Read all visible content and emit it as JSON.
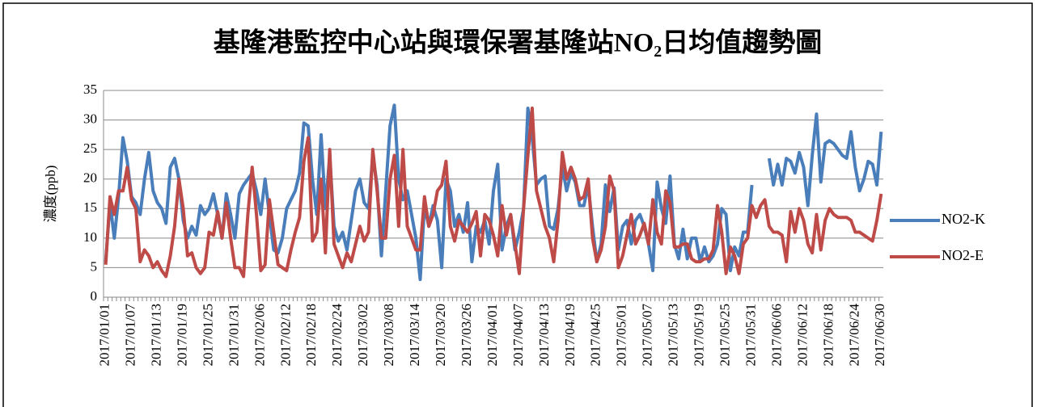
{
  "chart_data": {
    "type": "line",
    "title": "基隆港監控中心站與環保署基隆站NO₂日均值趨勢圖",
    "ylabel": "濃度(ppb)",
    "categories": [
      "2017/01/01",
      null,
      null,
      null,
      null,
      null,
      "2017/01/07",
      null,
      null,
      null,
      null,
      null,
      "2017/01/13",
      null,
      null,
      null,
      null,
      null,
      "2017/01/19",
      null,
      null,
      null,
      null,
      null,
      "2017/01/25",
      null,
      null,
      null,
      null,
      null,
      "2017/01/31",
      null,
      null,
      null,
      null,
      null,
      "2017/02/06",
      null,
      null,
      null,
      null,
      null,
      "2017/02/12",
      null,
      null,
      null,
      null,
      null,
      "2017/02/18",
      null,
      null,
      null,
      null,
      null,
      "2017/02/24",
      null,
      null,
      null,
      null,
      null,
      "2017/03/02",
      null,
      null,
      null,
      null,
      null,
      "2017/03/08",
      null,
      null,
      null,
      null,
      null,
      "2017/03/14",
      null,
      null,
      null,
      null,
      null,
      "2017/03/20",
      null,
      null,
      null,
      null,
      null,
      "2017/03/26",
      null,
      null,
      null,
      null,
      null,
      "2017/04/01",
      null,
      null,
      null,
      null,
      null,
      "2017/04/07",
      null,
      null,
      null,
      null,
      null,
      "2017/04/13",
      null,
      null,
      null,
      null,
      null,
      "2017/04/19",
      null,
      null,
      null,
      null,
      null,
      "2017/04/25",
      null,
      null,
      null,
      null,
      null,
      "2017/05/01",
      null,
      null,
      null,
      null,
      null,
      "2017/05/07",
      null,
      null,
      null,
      null,
      null,
      "2017/05/13",
      null,
      null,
      null,
      null,
      null,
      "2017/05/19",
      null,
      null,
      null,
      null,
      null,
      "2017/05/25",
      null,
      null,
      null,
      null,
      null,
      "2017/05/31",
      null,
      null,
      null,
      null,
      null,
      "2017/06/06",
      null,
      null,
      null,
      null,
      null,
      "2017/06/12",
      null,
      null,
      null,
      null,
      null,
      "2017/06/18",
      null,
      null,
      null,
      null,
      null,
      "2017/06/24",
      null,
      null,
      null,
      null,
      null,
      "2017/06/30"
    ],
    "series": [
      {
        "name": "NO2-K",
        "color": "#4a7ebb",
        "values": [
          6,
          16,
          10,
          17,
          27,
          23,
          17,
          16,
          14,
          20,
          24.5,
          18,
          16,
          15,
          12.5,
          22,
          23.5,
          20,
          13,
          10,
          12,
          10.5,
          15.5,
          14,
          15,
          17.5,
          14,
          10,
          17.5,
          14,
          10,
          17.5,
          19,
          20,
          21,
          18,
          14,
          20,
          14,
          8,
          7.5,
          10,
          15,
          16.5,
          18,
          21,
          29.5,
          29,
          20,
          14,
          27.5,
          15,
          24,
          12,
          9.5,
          11,
          8,
          13,
          18,
          20,
          16,
          15,
          24,
          19,
          7,
          18,
          29,
          32.5,
          20,
          16.5,
          18,
          14,
          10,
          3,
          15.5,
          12,
          15.5,
          13,
          5,
          20,
          18,
          12,
          14,
          11,
          16,
          6,
          12,
          11,
          13,
          9,
          18,
          22.5,
          8,
          12,
          14,
          8,
          11,
          15,
          32,
          27,
          19,
          20,
          20.5,
          12,
          11.5,
          15,
          22,
          18,
          21,
          19.5,
          15.5,
          15.5,
          19,
          12,
          6,
          9,
          19,
          14.5,
          18.5,
          8,
          12,
          13,
          9,
          13,
          14,
          12,
          9,
          4.5,
          19.5,
          15,
          12.5,
          20.5,
          9,
          6.5,
          11.5,
          6.5,
          10,
          10,
          6,
          8.5,
          6,
          7,
          9,
          15,
          14,
          4.5,
          8.5,
          7,
          11,
          11,
          19,
          null,
          null,
          null,
          23.5,
          19,
          22.5,
          19,
          23.5,
          23,
          21,
          24.5,
          22,
          15.5,
          24,
          31,
          19.5,
          26,
          26.5,
          26,
          25,
          24,
          23.5,
          28,
          22,
          18,
          20,
          23,
          22.5,
          19,
          28
        ]
      },
      {
        "name": "NO2-E",
        "color": "#be4b48",
        "values": [
          5.5,
          17,
          14,
          18,
          18,
          22,
          16.5,
          15,
          6,
          8,
          7,
          5,
          6,
          4.5,
          3.5,
          7,
          12,
          20,
          15,
          7,
          7.5,
          5,
          4,
          5,
          11,
          10.5,
          14.5,
          10,
          16,
          10,
          5,
          5,
          3.5,
          14,
          22,
          14,
          4.5,
          5.5,
          16.5,
          11,
          5.5,
          5,
          4.5,
          8,
          11,
          13.5,
          23,
          27,
          9.5,
          11,
          20,
          7.5,
          25,
          9,
          7,
          5,
          7.5,
          6,
          9,
          12,
          9.5,
          11,
          25,
          18,
          10,
          10,
          20,
          24,
          12,
          25,
          12,
          10,
          8,
          8,
          17,
          12,
          14,
          18,
          19,
          23,
          12,
          9.5,
          13,
          12,
          11,
          12.5,
          14.5,
          7,
          14,
          13,
          10.5,
          7,
          15.5,
          10.5,
          14,
          9,
          4,
          15,
          24,
          32,
          18,
          15,
          12,
          10,
          6,
          13,
          24.5,
          20,
          22,
          20,
          16.5,
          17,
          20,
          10,
          6,
          8,
          12,
          20.5,
          18,
          5,
          7,
          10.5,
          14,
          9,
          10.5,
          12.5,
          9,
          16.5,
          11,
          9,
          18,
          16,
          8.5,
          8.5,
          9,
          9,
          6.5,
          6,
          6,
          6.5,
          6.5,
          8,
          15.5,
          11,
          4,
          8.5,
          7,
          4,
          9,
          10,
          15.5,
          13.5,
          15.5,
          16.5,
          12,
          11,
          11,
          10.5,
          6,
          14.5,
          11,
          15,
          13,
          9,
          7.5,
          14,
          8,
          13,
          15,
          14,
          13.5,
          13.5,
          13.5,
          13,
          11,
          11,
          10.5,
          10,
          9.5,
          13,
          17.5
        ]
      }
    ],
    "ylim": [
      0,
      35
    ],
    "yticks": [
      0,
      5,
      10,
      15,
      20,
      25,
      30,
      35
    ],
    "grid": true,
    "legend": "right"
  }
}
